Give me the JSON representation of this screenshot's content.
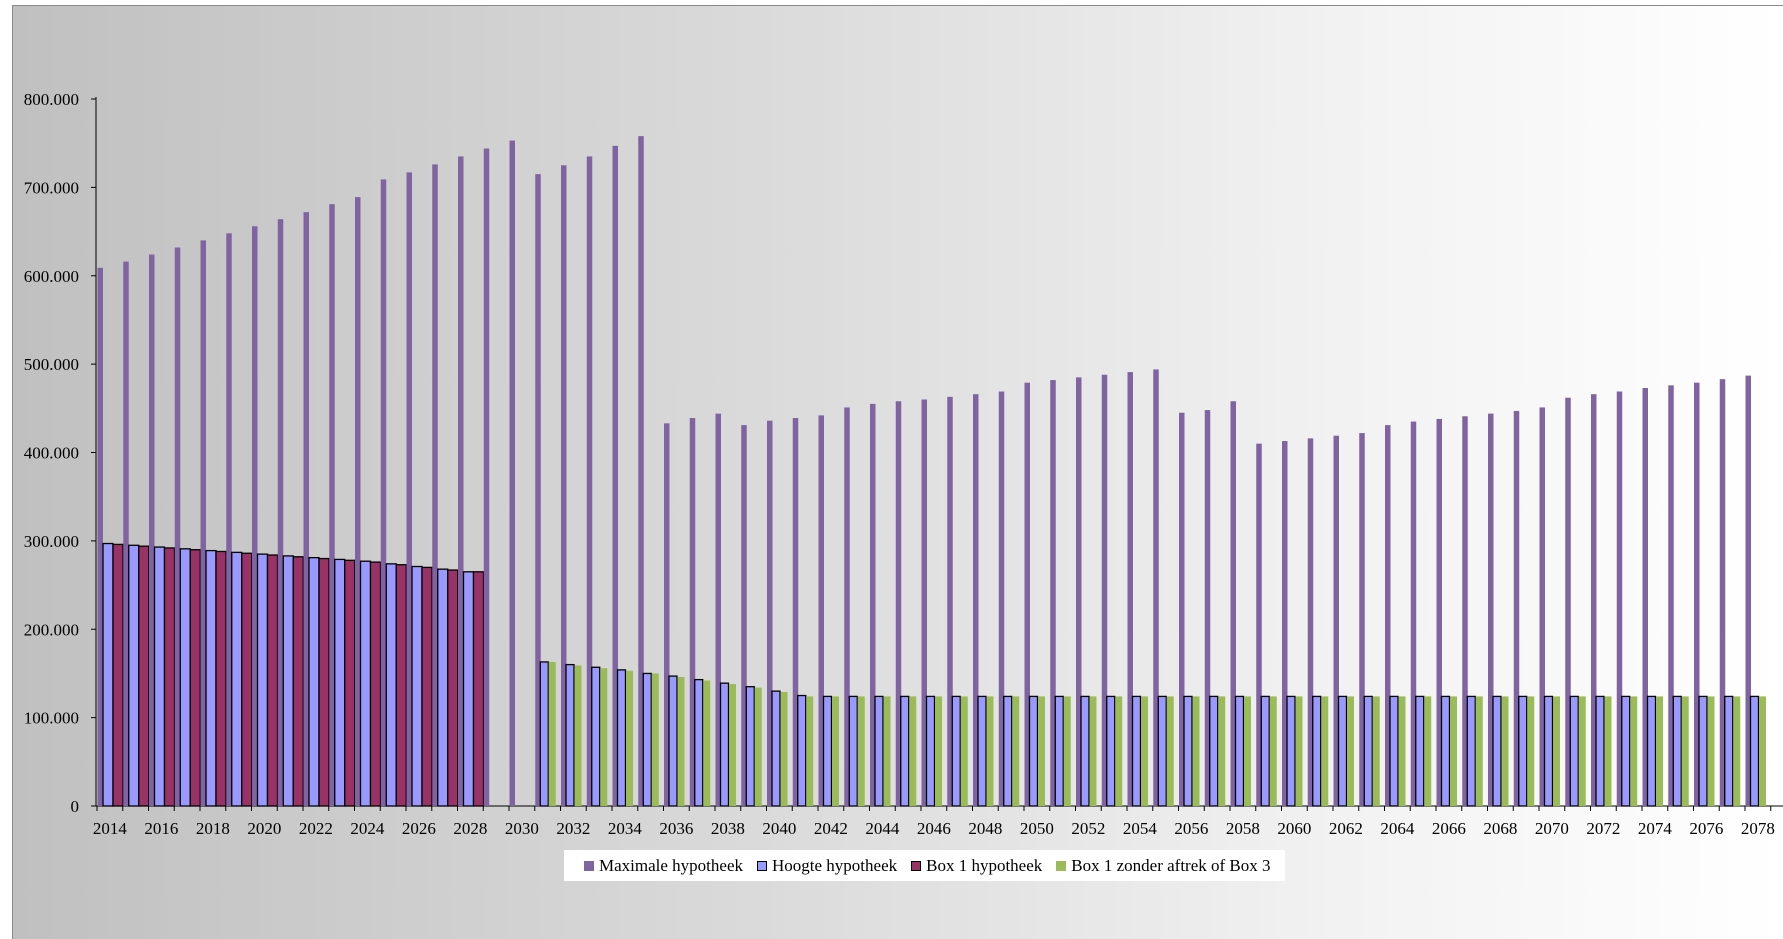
{
  "chart_data": {
    "type": "bar",
    "title": "",
    "xlabel": "",
    "ylabel": "",
    "ylim": [
      0,
      800000
    ],
    "y_tick_labels": [
      "0",
      "100.000",
      "200.000",
      "300.000",
      "400.000",
      "500.000",
      "600.000",
      "700.000",
      "800.000"
    ],
    "y_ticks": [
      0,
      100000,
      200000,
      300000,
      400000,
      500000,
      600000,
      700000,
      800000
    ],
    "x_tick_labels": [
      "2014",
      "2016",
      "2018",
      "2020",
      "2022",
      "2024",
      "2026",
      "2028",
      "2030",
      "2032",
      "2034",
      "2036",
      "2038",
      "2040",
      "2042",
      "2044",
      "2046",
      "2048",
      "2050",
      "2052",
      "2054",
      "2056",
      "2058",
      "2060",
      "2062",
      "2064",
      "2066",
      "2068",
      "2070",
      "2072",
      "2074",
      "2076",
      "2078"
    ],
    "grid": false,
    "legend_position": "bottom",
    "categories": [
      2014,
      2015,
      2016,
      2017,
      2018,
      2019,
      2020,
      2021,
      2022,
      2023,
      2024,
      2025,
      2026,
      2027,
      2028,
      2029,
      2030,
      2031,
      2032,
      2033,
      2034,
      2035,
      2036,
      2037,
      2038,
      2039,
      2040,
      2041,
      2042,
      2043,
      2044,
      2045,
      2046,
      2047,
      2048,
      2049,
      2050,
      2051,
      2052,
      2053,
      2054,
      2055,
      2056,
      2057,
      2058,
      2059,
      2060,
      2061,
      2062,
      2063,
      2064,
      2065,
      2066,
      2067,
      2068,
      2069,
      2070,
      2071,
      2072,
      2073,
      2074,
      2075,
      2076,
      2077,
      2078,
      2079
    ],
    "series": [
      {
        "name": "Maximale hypotheek",
        "color": "#8064a2",
        "values": [
          609000,
          616000,
          624000,
          632000,
          640000,
          648000,
          656000,
          664000,
          672000,
          681000,
          689000,
          709000,
          717000,
          726000,
          735000,
          744000,
          753000,
          715000,
          725000,
          735000,
          747000,
          758000,
          433000,
          439000,
          444000,
          431000,
          436000,
          439000,
          442000,
          451000,
          455000,
          458000,
          460000,
          463000,
          466000,
          469000,
          479000,
          482000,
          485000,
          488000,
          491000,
          494000,
          445000,
          448000,
          458000,
          410000,
          413000,
          416000,
          419000,
          422000,
          431000,
          435000,
          438000,
          441000,
          444000,
          447000,
          451000,
          462000,
          466000,
          469000,
          473000,
          476000,
          479000,
          483000,
          487000,
          null
        ]
      },
      {
        "name": "Hoogte hypotheek",
        "color": "#9999ff",
        "values": [
          297000,
          295000,
          293000,
          291000,
          289000,
          287000,
          285000,
          283000,
          281000,
          279000,
          277000,
          274000,
          271000,
          268000,
          265000,
          null,
          null,
          163000,
          160000,
          157000,
          154000,
          150000,
          147000,
          143000,
          139000,
          135000,
          130000,
          125000,
          124000,
          124000,
          124000,
          124000,
          124000,
          124000,
          124000,
          124000,
          124000,
          124000,
          124000,
          124000,
          124000,
          124000,
          124000,
          124000,
          124000,
          124000,
          124000,
          124000,
          124000,
          124000,
          124000,
          124000,
          124000,
          124000,
          124000,
          124000,
          124000,
          124000,
          124000,
          124000,
          124000,
          124000,
          124000,
          124000,
          124000,
          null
        ]
      },
      {
        "name": "Box 1 hypotheek",
        "color": "#993366",
        "values": [
          296000,
          294000,
          292000,
          290000,
          288000,
          286000,
          284000,
          282000,
          280000,
          278000,
          276000,
          273000,
          270000,
          267000,
          265000,
          null,
          null,
          null,
          null,
          null,
          null,
          null,
          null,
          null,
          null,
          null,
          null,
          null,
          null,
          null,
          null,
          null,
          null,
          null,
          null,
          null,
          null,
          null,
          null,
          null,
          null,
          null,
          null,
          null,
          null,
          null,
          null,
          null,
          null,
          null,
          null,
          null,
          null,
          null,
          null,
          null,
          null,
          null,
          null,
          null,
          null,
          null,
          null,
          null,
          null,
          null
        ]
      },
      {
        "name": "Box 1 zonder aftrek of Box 3",
        "color": "#9bbb59",
        "values": [
          null,
          null,
          null,
          null,
          null,
          null,
          null,
          null,
          null,
          null,
          null,
          null,
          null,
          null,
          null,
          null,
          null,
          163000,
          159000,
          156000,
          153000,
          150000,
          146000,
          142000,
          138000,
          134000,
          129000,
          124000,
          124000,
          124000,
          124000,
          124000,
          124000,
          124000,
          124000,
          124000,
          124000,
          124000,
          124000,
          124000,
          124000,
          124000,
          124000,
          124000,
          124000,
          124000,
          124000,
          124000,
          124000,
          124000,
          124000,
          124000,
          124000,
          124000,
          124000,
          124000,
          124000,
          124000,
          124000,
          124000,
          124000,
          124000,
          124000,
          124000,
          124000,
          124000
        ]
      }
    ]
  },
  "legend": {
    "items": [
      {
        "label": "Maximale hypotheek",
        "color": "#8064a2"
      },
      {
        "label": "Hoogte hypotheek",
        "color": "#9999ff"
      },
      {
        "label": "Box 1 hypotheek",
        "color": "#993366"
      },
      {
        "label": "Box 1 zonder aftrek of Box 3",
        "color": "#9bbb59"
      }
    ]
  }
}
